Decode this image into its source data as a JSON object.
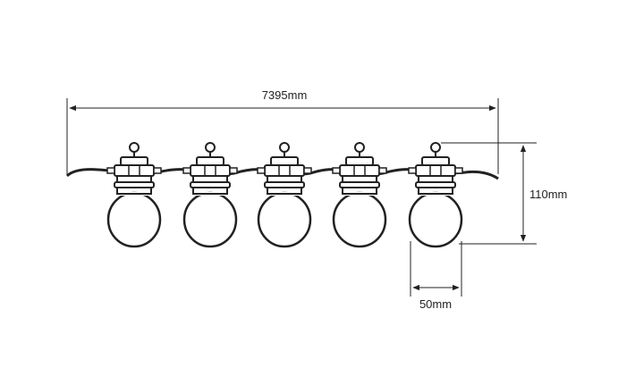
{
  "dimensions": {
    "total_length": "7395mm",
    "bulb_height": "110mm",
    "bulb_width": "50mm"
  },
  "bulbs": [
    {
      "id": 1
    },
    {
      "id": 2
    },
    {
      "id": 3
    },
    {
      "id": 4
    },
    {
      "id": 5
    }
  ],
  "colors": {
    "line": "#222222",
    "background": "#ffffff"
  }
}
